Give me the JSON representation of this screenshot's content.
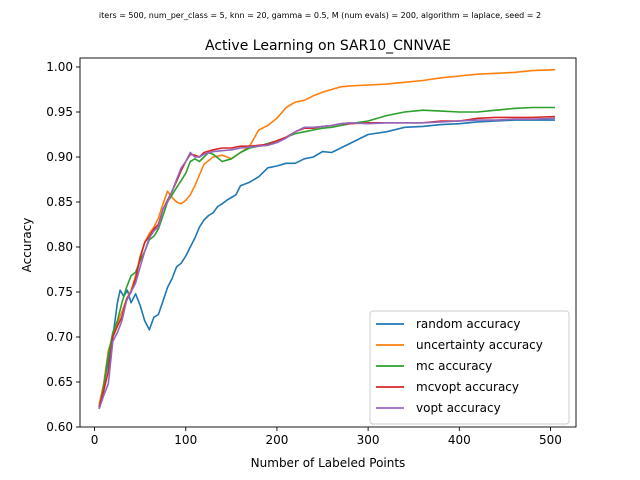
{
  "figure": {
    "suptitle": "iters = 500, num_per_class = 5, knn = 20, gamma = 0.5, M (num evals) = 200, algorithm = laplace, seed = 2"
  },
  "chart_data": {
    "type": "line",
    "title": "Active Learning on SAR10_CNNVAE",
    "xlabel": "Number of Labeled Points",
    "ylabel": "Accuracy",
    "xlim": [
      -16,
      528
    ],
    "ylim": [
      0.6,
      1.01
    ],
    "xticks": [
      0,
      100,
      200,
      300,
      400,
      500
    ],
    "yticks": [
      0.6,
      0.65,
      0.7,
      0.75,
      0.8,
      0.85,
      0.9,
      0.95,
      1.0
    ],
    "grid": false,
    "legend_position": "lower-right",
    "series": [
      {
        "name": "random accuracy",
        "color": "#1f77b4",
        "points": [
          [
            5,
            0.622
          ],
          [
            10,
            0.648
          ],
          [
            15,
            0.672
          ],
          [
            20,
            0.7
          ],
          [
            25,
            0.738
          ],
          [
            28,
            0.752
          ],
          [
            32,
            0.745
          ],
          [
            36,
            0.752
          ],
          [
            40,
            0.738
          ],
          [
            45,
            0.748
          ],
          [
            50,
            0.735
          ],
          [
            55,
            0.718
          ],
          [
            60,
            0.708
          ],
          [
            65,
            0.722
          ],
          [
            70,
            0.725
          ],
          [
            75,
            0.74
          ],
          [
            80,
            0.755
          ],
          [
            85,
            0.765
          ],
          [
            90,
            0.778
          ],
          [
            95,
            0.782
          ],
          [
            100,
            0.79
          ],
          [
            105,
            0.8
          ],
          [
            110,
            0.81
          ],
          [
            115,
            0.822
          ],
          [
            120,
            0.83
          ],
          [
            125,
            0.835
          ],
          [
            130,
            0.838
          ],
          [
            135,
            0.845
          ],
          [
            140,
            0.848
          ],
          [
            145,
            0.852
          ],
          [
            150,
            0.855
          ],
          [
            155,
            0.858
          ],
          [
            160,
            0.868
          ],
          [
            170,
            0.872
          ],
          [
            180,
            0.878
          ],
          [
            190,
            0.888
          ],
          [
            200,
            0.89
          ],
          [
            210,
            0.893
          ],
          [
            220,
            0.893
          ],
          [
            230,
            0.898
          ],
          [
            240,
            0.9
          ],
          [
            250,
            0.906
          ],
          [
            260,
            0.905
          ],
          [
            270,
            0.91
          ],
          [
            280,
            0.915
          ],
          [
            290,
            0.92
          ],
          [
            300,
            0.925
          ],
          [
            320,
            0.928
          ],
          [
            340,
            0.933
          ],
          [
            360,
            0.934
          ],
          [
            380,
            0.936
          ],
          [
            400,
            0.937
          ],
          [
            420,
            0.939
          ],
          [
            440,
            0.94
          ],
          [
            460,
            0.941
          ],
          [
            480,
            0.941
          ],
          [
            505,
            0.941
          ]
        ]
      },
      {
        "name": "uncertainty accuracy",
        "color": "#ff7f0e",
        "points": [
          [
            5,
            0.625
          ],
          [
            10,
            0.648
          ],
          [
            15,
            0.685
          ],
          [
            20,
            0.7
          ],
          [
            25,
            0.715
          ],
          [
            30,
            0.728
          ],
          [
            35,
            0.742
          ],
          [
            40,
            0.752
          ],
          [
            45,
            0.768
          ],
          [
            50,
            0.79
          ],
          [
            55,
            0.805
          ],
          [
            60,
            0.815
          ],
          [
            65,
            0.822
          ],
          [
            70,
            0.832
          ],
          [
            75,
            0.848
          ],
          [
            80,
            0.862
          ],
          [
            85,
            0.855
          ],
          [
            90,
            0.85
          ],
          [
            95,
            0.848
          ],
          [
            100,
            0.852
          ],
          [
            105,
            0.858
          ],
          [
            110,
            0.868
          ],
          [
            115,
            0.88
          ],
          [
            120,
            0.892
          ],
          [
            130,
            0.9
          ],
          [
            140,
            0.902
          ],
          [
            150,
            0.898
          ],
          [
            160,
            0.905
          ],
          [
            170,
            0.912
          ],
          [
            180,
            0.93
          ],
          [
            190,
            0.935
          ],
          [
            200,
            0.943
          ],
          [
            210,
            0.955
          ],
          [
            220,
            0.961
          ],
          [
            230,
            0.963
          ],
          [
            240,
            0.968
          ],
          [
            250,
            0.972
          ],
          [
            260,
            0.975
          ],
          [
            270,
            0.978
          ],
          [
            280,
            0.979
          ],
          [
            300,
            0.98
          ],
          [
            320,
            0.981
          ],
          [
            340,
            0.983
          ],
          [
            360,
            0.985
          ],
          [
            380,
            0.988
          ],
          [
            400,
            0.99
          ],
          [
            420,
            0.992
          ],
          [
            440,
            0.993
          ],
          [
            460,
            0.994
          ],
          [
            480,
            0.996
          ],
          [
            505,
            0.997
          ]
        ]
      },
      {
        "name": "mc accuracy",
        "color": "#2ca02c",
        "points": [
          [
            5,
            0.62
          ],
          [
            10,
            0.645
          ],
          [
            15,
            0.68
          ],
          [
            20,
            0.705
          ],
          [
            25,
            0.718
          ],
          [
            30,
            0.738
          ],
          [
            35,
            0.755
          ],
          [
            40,
            0.768
          ],
          [
            45,
            0.772
          ],
          [
            50,
            0.785
          ],
          [
            55,
            0.795
          ],
          [
            60,
            0.808
          ],
          [
            65,
            0.812
          ],
          [
            70,
            0.82
          ],
          [
            75,
            0.835
          ],
          [
            80,
            0.85
          ],
          [
            85,
            0.858
          ],
          [
            90,
            0.866
          ],
          [
            95,
            0.874
          ],
          [
            100,
            0.882
          ],
          [
            105,
            0.895
          ],
          [
            110,
            0.898
          ],
          [
            115,
            0.895
          ],
          [
            120,
            0.9
          ],
          [
            125,
            0.905
          ],
          [
            130,
            0.903
          ],
          [
            140,
            0.895
          ],
          [
            150,
            0.898
          ],
          [
            160,
            0.905
          ],
          [
            170,
            0.91
          ],
          [
            180,
            0.912
          ],
          [
            190,
            0.915
          ],
          [
            200,
            0.918
          ],
          [
            210,
            0.922
          ],
          [
            220,
            0.926
          ],
          [
            230,
            0.928
          ],
          [
            240,
            0.93
          ],
          [
            250,
            0.932
          ],
          [
            260,
            0.933
          ],
          [
            270,
            0.935
          ],
          [
            280,
            0.937
          ],
          [
            300,
            0.94
          ],
          [
            320,
            0.946
          ],
          [
            340,
            0.95
          ],
          [
            360,
            0.952
          ],
          [
            380,
            0.951
          ],
          [
            400,
            0.95
          ],
          [
            420,
            0.95
          ],
          [
            440,
            0.952
          ],
          [
            460,
            0.954
          ],
          [
            480,
            0.955
          ],
          [
            505,
            0.955
          ]
        ]
      },
      {
        "name": "mcvopt accuracy",
        "color": "#d62728",
        "points": [
          [
            5,
            0.622
          ],
          [
            10,
            0.64
          ],
          [
            15,
            0.662
          ],
          [
            20,
            0.7
          ],
          [
            25,
            0.712
          ],
          [
            30,
            0.722
          ],
          [
            35,
            0.742
          ],
          [
            40,
            0.75
          ],
          [
            45,
            0.765
          ],
          [
            50,
            0.788
          ],
          [
            55,
            0.805
          ],
          [
            60,
            0.812
          ],
          [
            65,
            0.82
          ],
          [
            70,
            0.825
          ],
          [
            75,
            0.842
          ],
          [
            80,
            0.852
          ],
          [
            85,
            0.862
          ],
          [
            90,
            0.873
          ],
          [
            95,
            0.885
          ],
          [
            100,
            0.895
          ],
          [
            105,
            0.903
          ],
          [
            110,
            0.902
          ],
          [
            115,
            0.9
          ],
          [
            120,
            0.905
          ],
          [
            130,
            0.908
          ],
          [
            140,
            0.91
          ],
          [
            150,
            0.91
          ],
          [
            160,
            0.912
          ],
          [
            170,
            0.912
          ],
          [
            180,
            0.913
          ],
          [
            190,
            0.914
          ],
          [
            200,
            0.918
          ],
          [
            210,
            0.922
          ],
          [
            220,
            0.928
          ],
          [
            230,
            0.932
          ],
          [
            240,
            0.932
          ],
          [
            250,
            0.934
          ],
          [
            260,
            0.935
          ],
          [
            270,
            0.937
          ],
          [
            280,
            0.937
          ],
          [
            300,
            0.938
          ],
          [
            320,
            0.938
          ],
          [
            340,
            0.938
          ],
          [
            360,
            0.938
          ],
          [
            380,
            0.94
          ],
          [
            400,
            0.94
          ],
          [
            420,
            0.943
          ],
          [
            440,
            0.944
          ],
          [
            460,
            0.944
          ],
          [
            480,
            0.944
          ],
          [
            505,
            0.945
          ]
        ]
      },
      {
        "name": "vopt accuracy",
        "color": "#9467bd",
        "points": [
          [
            5,
            0.62
          ],
          [
            10,
            0.635
          ],
          [
            15,
            0.648
          ],
          [
            20,
            0.695
          ],
          [
            25,
            0.705
          ],
          [
            30,
            0.718
          ],
          [
            35,
            0.74
          ],
          [
            40,
            0.75
          ],
          [
            45,
            0.76
          ],
          [
            50,
            0.778
          ],
          [
            55,
            0.795
          ],
          [
            60,
            0.81
          ],
          [
            65,
            0.818
          ],
          [
            70,
            0.822
          ],
          [
            75,
            0.842
          ],
          [
            80,
            0.85
          ],
          [
            85,
            0.862
          ],
          [
            90,
            0.875
          ],
          [
            95,
            0.888
          ],
          [
            100,
            0.895
          ],
          [
            105,
            0.905
          ],
          [
            110,
            0.9
          ],
          [
            115,
            0.9
          ],
          [
            120,
            0.903
          ],
          [
            130,
            0.906
          ],
          [
            140,
            0.907
          ],
          [
            150,
            0.908
          ],
          [
            160,
            0.91
          ],
          [
            170,
            0.911
          ],
          [
            180,
            0.912
          ],
          [
            190,
            0.913
          ],
          [
            200,
            0.916
          ],
          [
            210,
            0.921
          ],
          [
            220,
            0.928
          ],
          [
            230,
            0.933
          ],
          [
            240,
            0.933
          ],
          [
            250,
            0.934
          ],
          [
            260,
            0.935
          ],
          [
            270,
            0.937
          ],
          [
            280,
            0.938
          ],
          [
            300,
            0.937
          ],
          [
            320,
            0.938
          ],
          [
            340,
            0.938
          ],
          [
            360,
            0.938
          ],
          [
            380,
            0.939
          ],
          [
            400,
            0.94
          ],
          [
            420,
            0.941
          ],
          [
            440,
            0.941
          ],
          [
            460,
            0.942
          ],
          [
            480,
            0.942
          ],
          [
            505,
            0.943
          ]
        ]
      }
    ]
  }
}
